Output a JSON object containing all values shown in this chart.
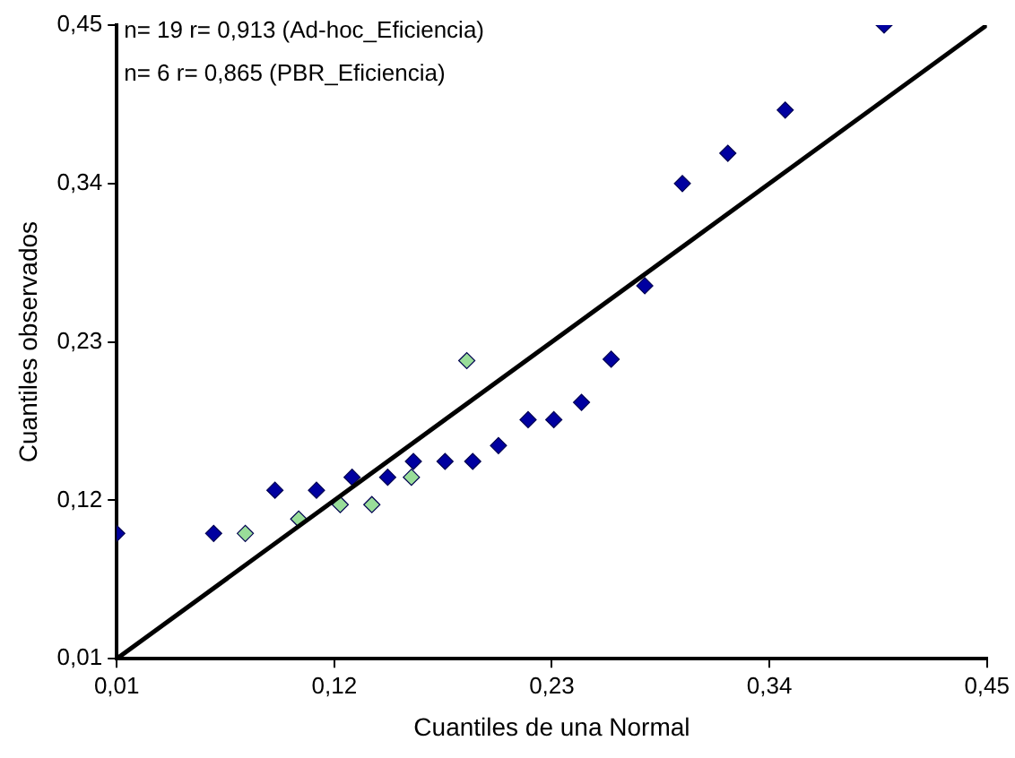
{
  "chart_data": {
    "type": "scatter",
    "xlabel": "Cuantiles de una Normal",
    "ylabel": "Cuantiles observados",
    "annotations": [
      "n= 19 r= 0,913 (Ad-hoc_Eficiencia)",
      "n= 6 r= 0,865 (PBR_Eficiencia)"
    ],
    "xlim": [
      0.01,
      0.45
    ],
    "ylim": [
      0.01,
      0.45
    ],
    "xticks": [
      {
        "value": 0.01,
        "label": "0,01"
      },
      {
        "value": 0.12,
        "label": "0,12"
      },
      {
        "value": 0.23,
        "label": "0,23"
      },
      {
        "value": 0.34,
        "label": "0,34"
      },
      {
        "value": 0.45,
        "label": "0,45"
      }
    ],
    "yticks": [
      {
        "value": 0.01,
        "label": "0,01"
      },
      {
        "value": 0.12,
        "label": "0,12"
      },
      {
        "value": 0.23,
        "label": "0,23"
      },
      {
        "value": 0.34,
        "label": "0,34"
      },
      {
        "value": 0.45,
        "label": "0,45"
      }
    ],
    "grid": false,
    "legend": false,
    "marker": "diamond",
    "series": [
      {
        "color": "#0000a0",
        "x": [
          0.01,
          0.059,
          0.09,
          0.111,
          0.129,
          0.147,
          0.16,
          0.176,
          0.19,
          0.203,
          0.218,
          0.231,
          0.245,
          0.26,
          0.277,
          0.296,
          0.319,
          0.348,
          0.398
        ],
        "values": [
          0.097,
          0.097,
          0.127,
          0.127,
          0.136,
          0.136,
          0.147,
          0.147,
          0.147,
          0.158,
          0.176,
          0.176,
          0.188,
          0.218,
          0.269,
          0.34,
          0.361,
          0.391,
          0.45
        ]
      },
      {
        "color": "#99dd99",
        "x": [
          0.075,
          0.102,
          0.123,
          0.139,
          0.159,
          0.187
        ],
        "values": [
          0.097,
          0.107,
          0.117,
          0.117,
          0.136,
          0.217
        ]
      },
      {
        "type": "line",
        "color": "#000000",
        "x": [
          0.01,
          0.45
        ],
        "values": [
          0.01,
          0.45
        ],
        "marker": "none"
      }
    ]
  }
}
